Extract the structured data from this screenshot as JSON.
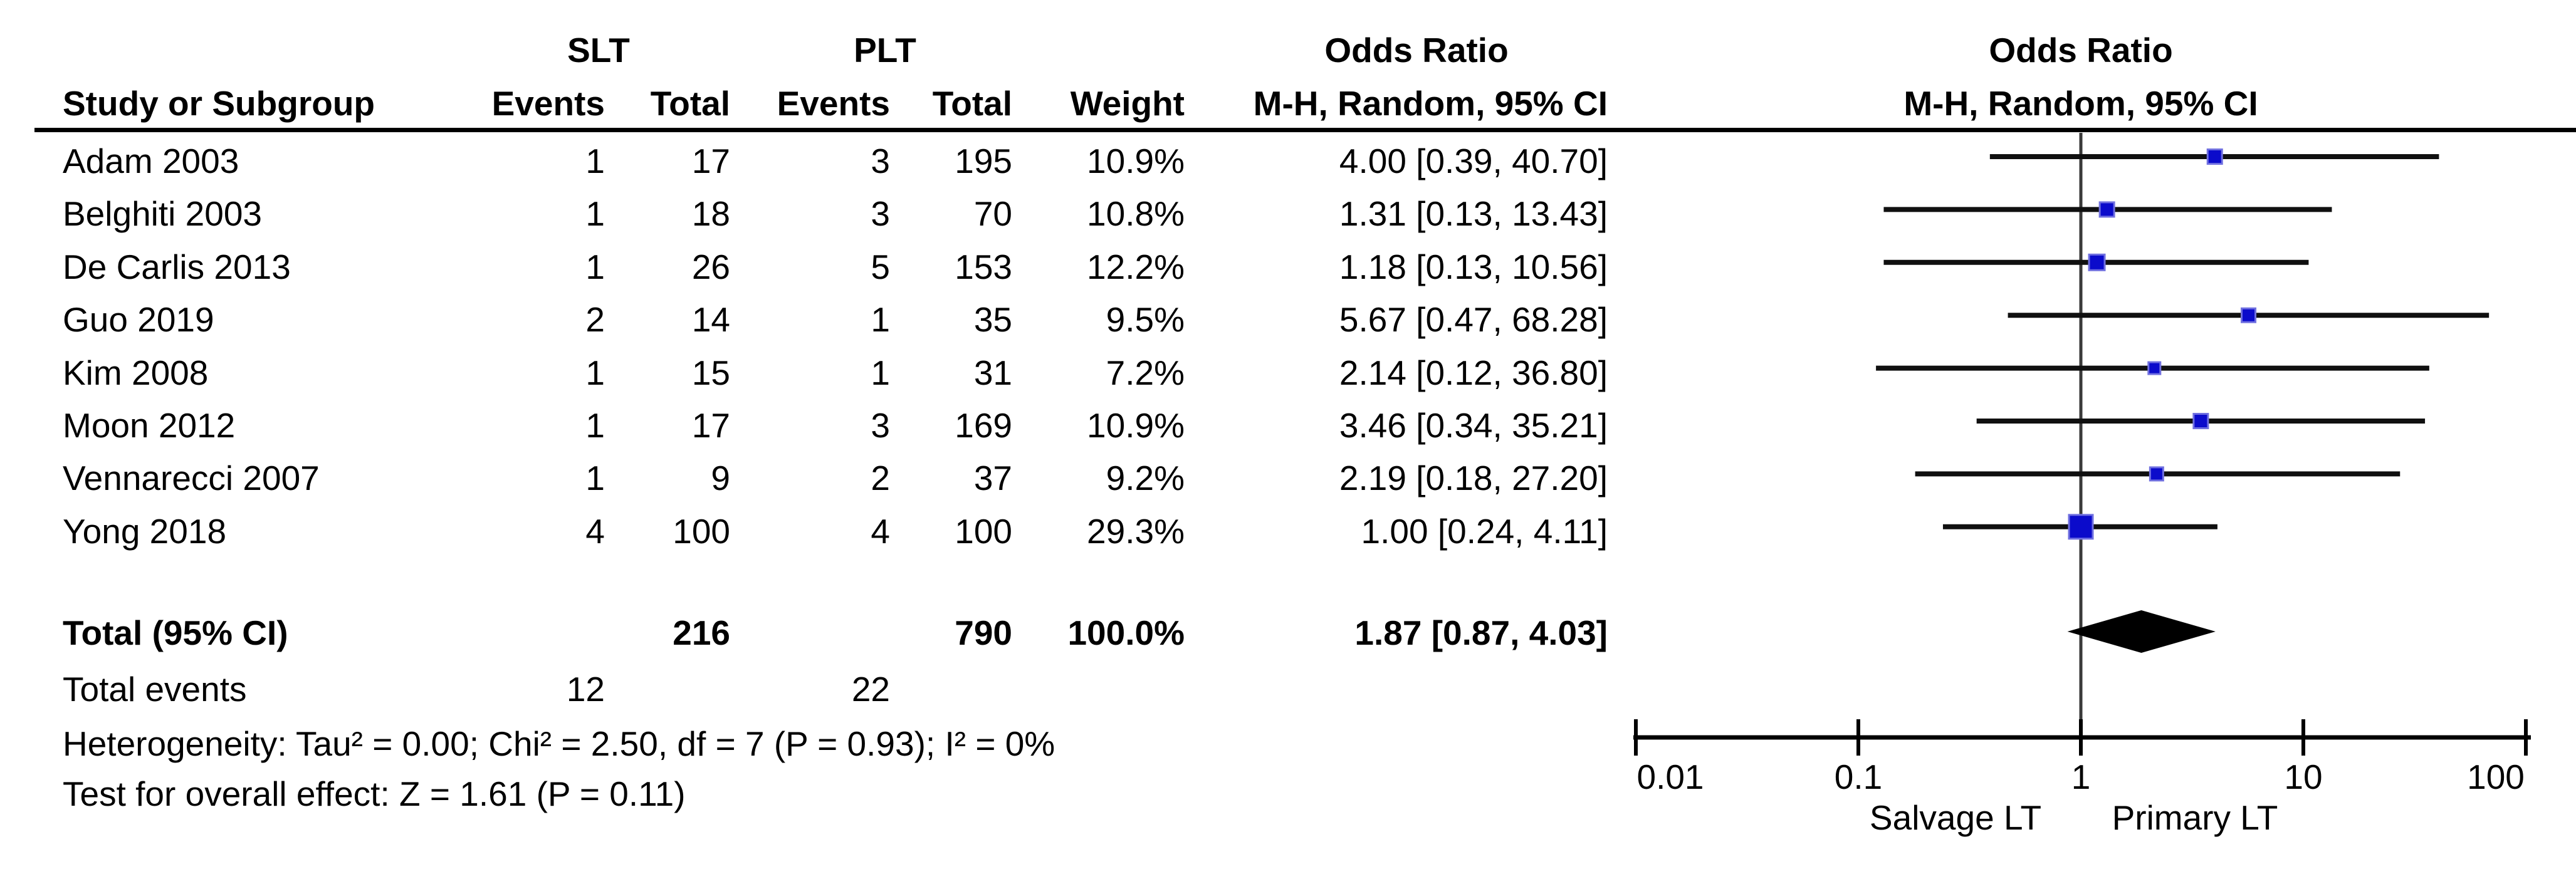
{
  "figure": {
    "group1": "SLT",
    "group2": "PLT",
    "or_header": "Odds Ratio",
    "mh_header": "M-H, Random, 95% CI",
    "cols": {
      "study": "Study or Subgroup",
      "events": "Events",
      "total": "Total",
      "weight": "Weight"
    },
    "totals": {
      "label": "Total (95% CI)",
      "events_label": "Total events",
      "slt_total": 216,
      "plt_total": 790,
      "weight": "100.0%",
      "slt_events": 12,
      "plt_events": 22
    },
    "footer": {
      "heterogeneity": "Heterogeneity: Tau² = 0.00; Chi² = 2.50, df = 7 (P = 0.93); I² = 0%",
      "overall_effect": "Test for overall effect: Z = 1.61 (P = 0.11)"
    },
    "colors": {
      "marker_blue": "#0b0bcb",
      "marker_border": "#7070e0",
      "line_black": "#101010",
      "diamond_black": "#000000"
    }
  },
  "chart_data": {
    "type": "forest",
    "variant": "meta-analysis odds ratio (M-H, Random, 95% CI)",
    "scale": "log10",
    "studies": [
      {
        "name": "Adam 2003",
        "slt_events": 1,
        "slt_total": 17,
        "plt_events": 3,
        "plt_total": 195,
        "weight": 10.9,
        "or": 4.0,
        "ci_low": 0.39,
        "ci_high": 40.7
      },
      {
        "name": "Belghiti 2003",
        "slt_events": 1,
        "slt_total": 18,
        "plt_events": 3,
        "plt_total": 70,
        "weight": 10.8,
        "or": 1.31,
        "ci_low": 0.13,
        "ci_high": 13.43
      },
      {
        "name": "De Carlis 2013",
        "slt_events": 1,
        "slt_total": 26,
        "plt_events": 5,
        "plt_total": 153,
        "weight": 12.2,
        "or": 1.18,
        "ci_low": 0.13,
        "ci_high": 10.56
      },
      {
        "name": "Guo 2019",
        "slt_events": 2,
        "slt_total": 14,
        "plt_events": 1,
        "plt_total": 35,
        "weight": 9.5,
        "or": 5.67,
        "ci_low": 0.47,
        "ci_high": 68.28
      },
      {
        "name": "Kim 2008",
        "slt_events": 1,
        "slt_total": 15,
        "plt_events": 1,
        "plt_total": 31,
        "weight": 7.2,
        "or": 2.14,
        "ci_low": 0.12,
        "ci_high": 36.8
      },
      {
        "name": "Moon 2012",
        "slt_events": 1,
        "slt_total": 17,
        "plt_events": 3,
        "plt_total": 169,
        "weight": 10.9,
        "or": 3.46,
        "ci_low": 0.34,
        "ci_high": 35.21
      },
      {
        "name": "Vennarecci 2007",
        "slt_events": 1,
        "slt_total": 9,
        "plt_events": 2,
        "plt_total": 37,
        "weight": 9.2,
        "or": 2.19,
        "ci_low": 0.18,
        "ci_high": 27.2
      },
      {
        "name": "Yong 2018",
        "slt_events": 4,
        "slt_total": 100,
        "plt_events": 4,
        "plt_total": 100,
        "weight": 29.3,
        "or": 1.0,
        "ci_low": 0.24,
        "ci_high": 4.11
      }
    ],
    "total": {
      "or": 1.87,
      "ci_low": 0.87,
      "ci_high": 4.03
    },
    "axis": {
      "ticks": [
        {
          "value": 0.01,
          "label": "0.01"
        },
        {
          "value": 0.1,
          "label": "0.1"
        },
        {
          "value": 1,
          "label": "1"
        },
        {
          "value": 10,
          "label": "10"
        },
        {
          "value": 100,
          "label": "100"
        }
      ],
      "left_label": "Salvage LT",
      "right_label": "Primary LT"
    }
  }
}
